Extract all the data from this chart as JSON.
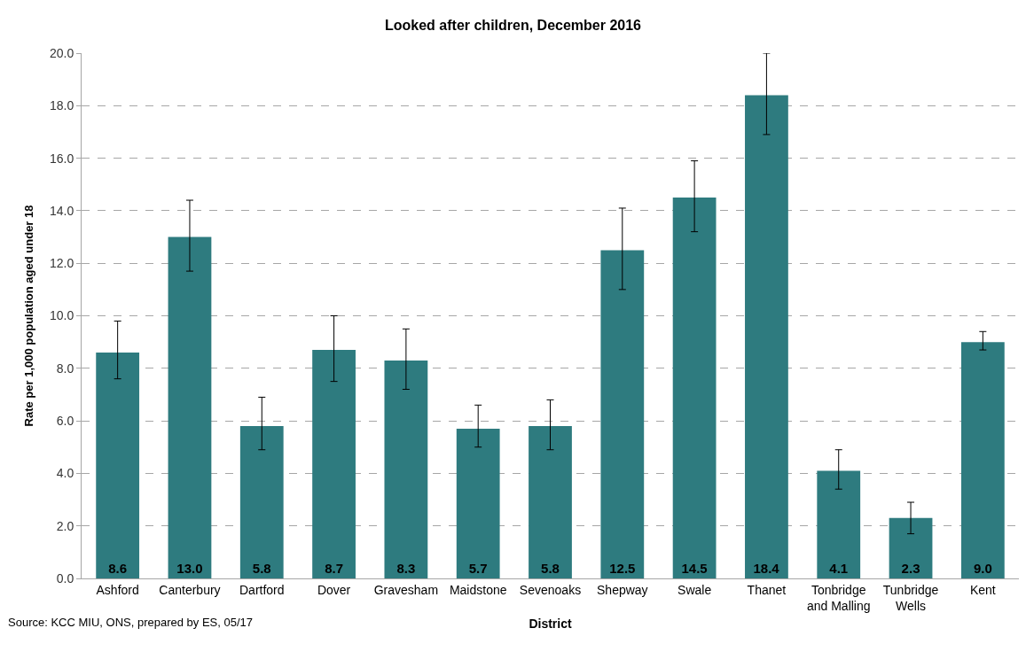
{
  "chart_data": {
    "type": "bar",
    "title": "Looked after children, December 2016",
    "xlabel": "District",
    "ylabel": "Rate per 1,000 population aged under 18",
    "categories": [
      "Ashford",
      "Canterbury",
      "Dartford",
      "Dover",
      "Gravesham",
      "Maidstone",
      "Sevenoaks",
      "Shepway",
      "Swale",
      "Thanet",
      "Tonbridge and Malling",
      "Tunbridge Wells",
      "Kent"
    ],
    "values": [
      8.6,
      13.0,
      5.8,
      8.7,
      8.3,
      5.7,
      5.8,
      12.5,
      14.5,
      18.4,
      4.1,
      2.3,
      9.0
    ],
    "errors": [
      [
        7.6,
        9.8
      ],
      [
        11.7,
        14.4
      ],
      [
        4.9,
        6.9
      ],
      [
        7.5,
        10.0
      ],
      [
        7.2,
        9.5
      ],
      [
        5.0,
        6.6
      ],
      [
        4.9,
        6.8
      ],
      [
        11.0,
        14.1
      ],
      [
        13.2,
        15.9
      ],
      [
        16.9,
        20.0
      ],
      [
        3.4,
        4.9
      ],
      [
        1.7,
        2.9
      ],
      [
        8.7,
        9.4
      ]
    ],
    "value_labels": [
      "8.6",
      "13.0",
      "5.8",
      "8.7",
      "8.3",
      "5.7",
      "5.8",
      "12.5",
      "14.5",
      "18.4",
      "4.1",
      "2.3",
      "9.0"
    ],
    "color": "#2e7b7f",
    "ylim": [
      0,
      20
    ],
    "yticks": [
      {
        "value": 0,
        "label": "0.0"
      },
      {
        "value": 2,
        "label": "2.0"
      },
      {
        "value": 4,
        "label": "4.0"
      },
      {
        "value": 6,
        "label": "6.0"
      },
      {
        "value": 8,
        "label": "8.0"
      },
      {
        "value": 10,
        "label": "10.0"
      },
      {
        "value": 12,
        "label": "12.0"
      },
      {
        "value": 14,
        "label": "14.0"
      },
      {
        "value": 16,
        "label": "16.0"
      },
      {
        "value": 18,
        "label": "18.0"
      },
      {
        "value": 20,
        "label": "20.0"
      }
    ],
    "grid": "y",
    "legend": false,
    "annotations": [
      "Source: KCC MIU, ONS, prepared by ES, 05/17"
    ]
  }
}
